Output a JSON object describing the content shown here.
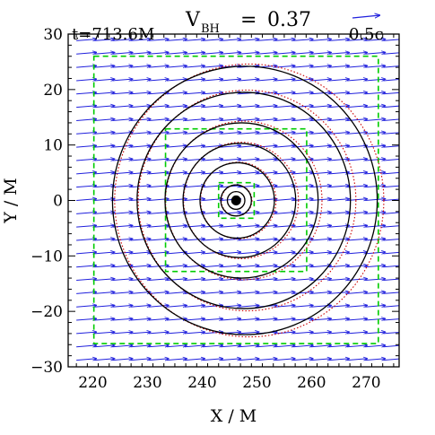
{
  "chart_data": {
    "type": "vector-field-contour",
    "title_time": "t=713.6M",
    "title_velocity": {
      "symbol": "V",
      "subscript": "BH",
      "equals": "=",
      "value": "0.37"
    },
    "vector_scale_label": "0.5c",
    "xlabel": "X / M",
    "ylabel": "Y / M",
    "xlim": [
      215.5,
      276
    ],
    "ylim": [
      -30,
      30
    ],
    "xticks": [
      220,
      230,
      240,
      250,
      260,
      270
    ],
    "yticks": [
      -30,
      -20,
      -10,
      0,
      10,
      20,
      30
    ],
    "xtick_labels": [
      "220",
      "230",
      "240",
      "250",
      "260",
      "270"
    ],
    "ytick_labels": [
      "−30",
      "−20",
      "−10",
      "0",
      "10",
      "20",
      "30"
    ],
    "black_hole": {
      "x": 246.2,
      "y": 0.0,
      "radius": 0.9
    },
    "solid_contours": [
      {
        "cx": 246.2,
        "cy": 0.0,
        "r": 1.6
      },
      {
        "cx": 246.2,
        "cy": 0.0,
        "r": 2.8
      },
      {
        "cx": 246.4,
        "cy": 0.0,
        "r": 6.8
      },
      {
        "cx": 246.8,
        "cy": 0.0,
        "r": 10.3
      },
      {
        "cx": 247.2,
        "cy": 0.0,
        "r": 14.0
      },
      {
        "cx": 247.6,
        "cy": 0.0,
        "r": 19.5
      },
      {
        "cx": 247.8,
        "cy": 0.0,
        "r": 24.2
      }
    ],
    "dotted_contours": [
      {
        "cx": 246.2,
        "cy": 0.0,
        "r": 1.6
      },
      {
        "cx": 246.3,
        "cy": 0.0,
        "r": 2.8
      },
      {
        "cx": 246.6,
        "cy": 0.0,
        "r": 6.9
      },
      {
        "cx": 247.1,
        "cy": 0.0,
        "r": 10.5
      },
      {
        "cx": 247.6,
        "cy": 0.0,
        "r": 14.3
      },
      {
        "cx": 248.2,
        "cy": 0.0,
        "r": 19.9
      },
      {
        "cx": 248.6,
        "cy": 0.0,
        "r": 24.6
      }
    ],
    "refinement_boxes": [
      {
        "x0": 220.2,
        "x1": 272.2,
        "y0": -25.8,
        "y1": 26.0
      },
      {
        "x0": 233.3,
        "x1": 259.1,
        "y0": -12.8,
        "y1": 12.9
      },
      {
        "x0": 243.0,
        "x1": 249.5,
        "y0": -3.2,
        "y1": 3.2
      }
    ],
    "vector_field": {
      "x_start": 217.0,
      "x_step": 3.3,
      "x_count": 18,
      "y_start": -28.8,
      "y_step": 2.4,
      "y_count": 25,
      "vx": 0.37,
      "vy": 0.03,
      "arrow_scale_length_units": 5.0,
      "arrow_scale_velocity": 0.5,
      "excluded_radius": 1.5
    },
    "colors": {
      "contour_solid": "#000000",
      "contour_dotted": "#cc0000",
      "refinement_box": "#00cc00",
      "vector": "#2020dd",
      "black_hole": "#000000",
      "axes": "#000000"
    },
    "grid": false
  }
}
